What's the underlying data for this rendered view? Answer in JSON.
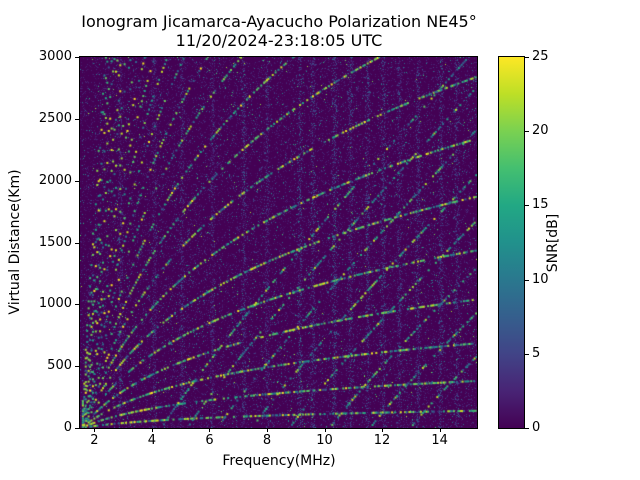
{
  "figure": {
    "title_line1": "Ionogram Jicamarca-Ayacucho Polarization NE45°",
    "title_line2": "11/20/2024-23:18:05 UTC",
    "xlabel": "Frequency(MHz)",
    "ylabel": "Virtual Distance(Km)",
    "colorbar_label": "SNR[dB]"
  },
  "chart_data": {
    "type": "heatmap",
    "title": "Ionogram Jicamarca-Ayacucho Polarization NE45°",
    "subtitle": "11/20/2024-23:18:05 UTC",
    "xlabel": "Frequency(MHz)",
    "ylabel": "Virtual Distance(Km)",
    "xlim": [
      1.5,
      15.3
    ],
    "ylim": [
      0,
      3000
    ],
    "x_ticks": [
      2,
      4,
      6,
      8,
      10,
      12,
      14
    ],
    "y_ticks": [
      0,
      500,
      1000,
      1500,
      2000,
      2500,
      3000
    ],
    "grid": false,
    "legend": "none",
    "colorbar": {
      "label": "SNR[dB]",
      "ticks": [
        0,
        5,
        10,
        15,
        20,
        25
      ],
      "range": [
        0,
        25
      ],
      "colormap": "viridis",
      "colormap_stops": [
        "#440154",
        "#482475",
        "#414487",
        "#355f8d",
        "#2a788e",
        "#21918c",
        "#22a884",
        "#44bf70",
        "#7ad151",
        "#bddf26",
        "#fde725"
      ]
    },
    "background_snr_db": 0,
    "render_model": {
      "seed": 42,
      "noise_points": 26000,
      "stripes": [
        [
          2.9,
          5
        ],
        [
          4.1,
          5
        ],
        [
          5.05,
          6
        ],
        [
          6.1,
          5
        ],
        [
          7.2,
          7
        ],
        [
          8.0,
          6
        ],
        [
          9.15,
          9
        ],
        [
          9.6,
          8
        ],
        [
          10.35,
          9
        ],
        [
          10.9,
          7
        ],
        [
          11.5,
          8
        ],
        [
          12.05,
          8
        ],
        [
          12.6,
          7
        ],
        [
          13.25,
          7
        ],
        [
          14.05,
          8
        ],
        [
          14.6,
          7
        ]
      ],
      "stripe_points": 700,
      "echo_family_log": {
        "f_start": 1.55,
        "count": 26,
        "amp_base": 140,
        "amp_exp": 1.45,
        "draw_prob": 0.58
      },
      "echo_family_oblique": {
        "f_starts": [
          4.35,
          5.25,
          6.3,
          7.5,
          8.8,
          10.2,
          11.6,
          13.0
        ],
        "slopes": [
          340,
          330,
          320,
          310,
          300,
          290,
          280,
          270
        ],
        "exponent": 0.92,
        "draw_prob": 0.5
      }
    }
  }
}
